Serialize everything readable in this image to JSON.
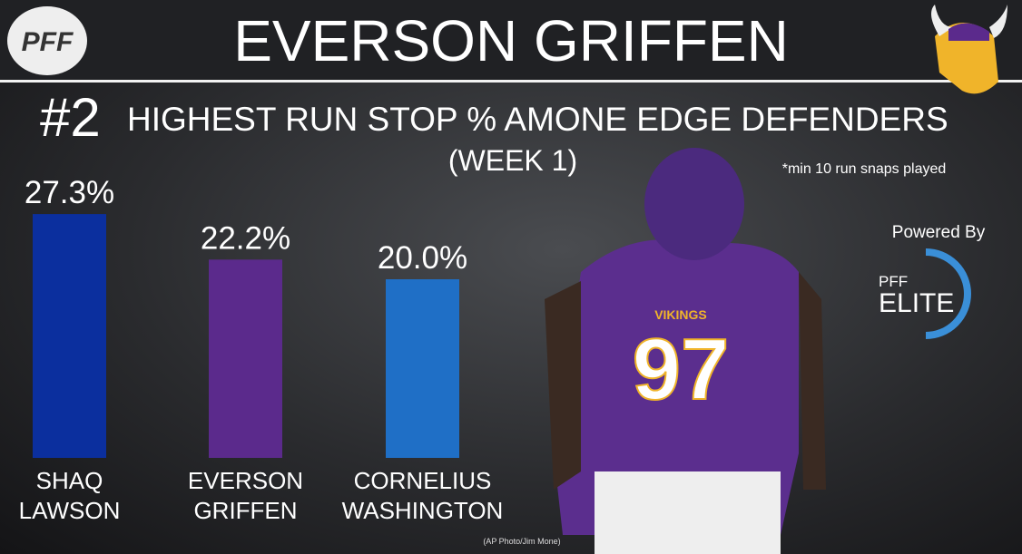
{
  "logo": "PFF",
  "chart_data": {
    "type": "bar",
    "title": "EVERSON GRIFFEN",
    "rank": "#2",
    "subtitle": "HIGHEST RUN STOP % AMONE EDGE DEFENDERS",
    "period": "(WEEK 1)",
    "note": "*min 10 run snaps played",
    "categories": [
      "SHAQ LAWSON",
      "EVERSON GRIFFEN",
      "CORNELIUS WASHINGTON"
    ],
    "values": [
      27.3,
      22.2,
      20.0
    ],
    "value_labels": [
      "27.3%",
      "22.2%",
      "20.0%"
    ],
    "colors": [
      "#0b2f9e",
      "#5b2a8c",
      "#1f6fc6"
    ]
  },
  "badge": {
    "powered_by": "Powered By",
    "brand": "PFF",
    "tier": "ELITE"
  },
  "photo": {
    "jersey_team": "VIKINGS",
    "jersey_number": "97",
    "credit": "(AP Photo/Jim Mone)"
  }
}
